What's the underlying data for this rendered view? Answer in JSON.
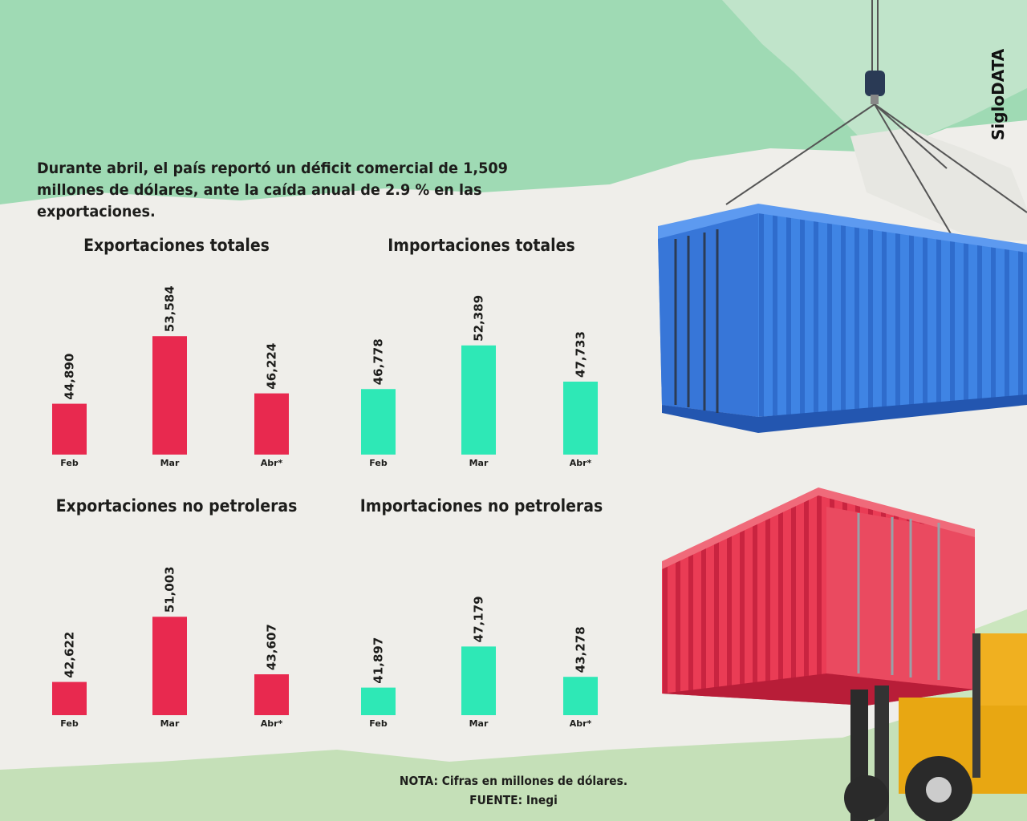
{
  "headline": "Durante abril, el país reportó un déficit comercial de 1,509 millones de dólares, ante la caída anual de 2.9 % en las exportaciones.",
  "brand": "SigloDATA",
  "colors": {
    "exports": "#e8294f",
    "imports": "#2ee8b6",
    "green_band": "#9fdab4",
    "blue_container": "#3d7fe0",
    "red_container": "#e83a52"
  },
  "chart_data": [
    {
      "type": "bar",
      "title": "Exportaciones totales",
      "categories": [
        "Feb",
        "Mar",
        "Abr*"
      ],
      "values": [
        44890,
        53584,
        46224
      ],
      "value_labels": [
        "44,890",
        "53,584",
        "46,224"
      ]
    },
    {
      "type": "bar",
      "title": "Importaciones totales",
      "categories": [
        "Feb",
        "Mar",
        "Abr*"
      ],
      "values": [
        46778,
        52389,
        47733
      ],
      "value_labels": [
        "46,778",
        "52,389",
        "47,733"
      ]
    },
    {
      "type": "bar",
      "title": "Exportaciones no petroleras",
      "categories": [
        "Feb",
        "Mar",
        "Abr*"
      ],
      "values": [
        42622,
        51003,
        43607
      ],
      "value_labels": [
        "42,622",
        "51,003",
        "43,607"
      ]
    },
    {
      "type": "bar",
      "title": "Importaciones no petroleras",
      "categories": [
        "Feb",
        "Mar",
        "Abr*"
      ],
      "values": [
        41897,
        47179,
        43278
      ],
      "value_labels": [
        "41,897",
        "47,179",
        "43,278"
      ]
    }
  ],
  "note": "NOTA: Cifras en millones de dólares.",
  "source": "FUENTE: Inegi"
}
